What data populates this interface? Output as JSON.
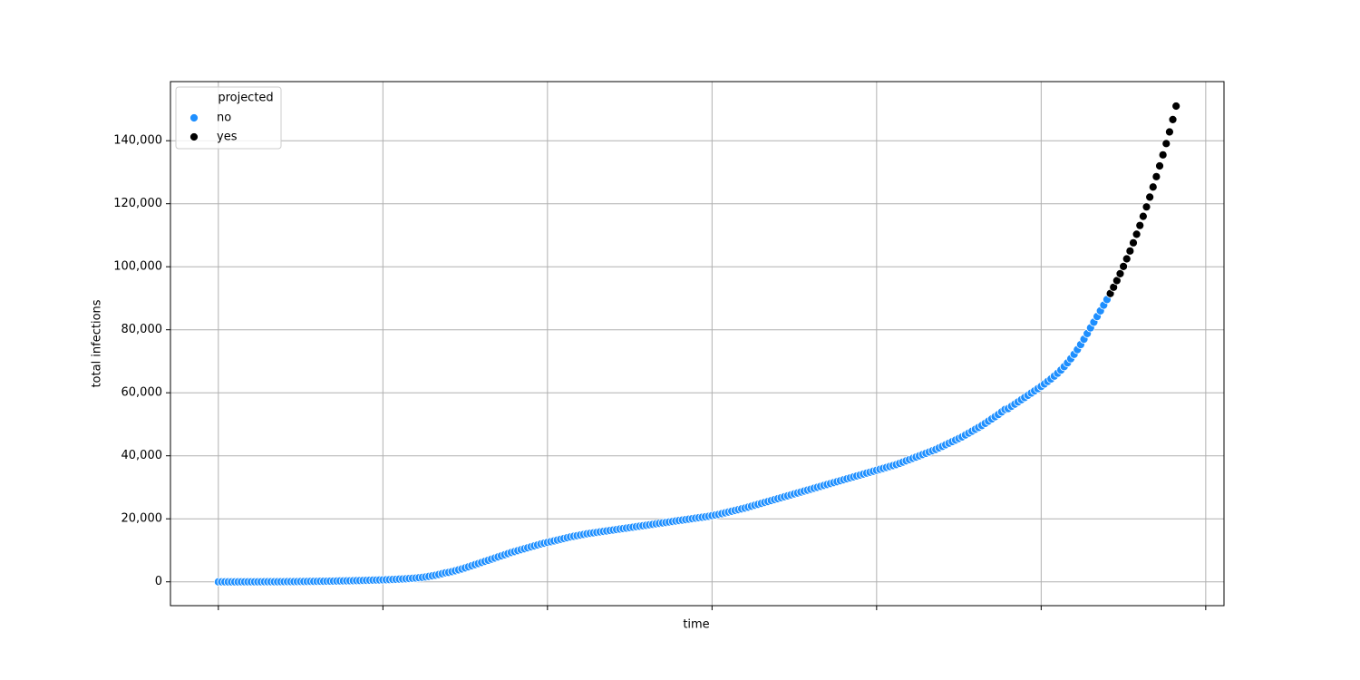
{
  "chart_data": {
    "type": "scatter",
    "xlabel": "time",
    "ylabel": "total infections",
    "legend_title": "projected",
    "xlim": [
      -14.55,
      305.55
    ],
    "ylim": [
      -7560,
      158760
    ],
    "xticks": [
      0,
      50,
      100,
      150,
      200,
      250,
      300
    ],
    "yticks": [
      0,
      {
        "value": 20000,
        "label": "20,000"
      },
      {
        "value": 40000,
        "label": "40,000"
      },
      {
        "value": 60000,
        "label": "60,000"
      },
      {
        "value": 80000,
        "label": "80,000"
      },
      {
        "value": 100000,
        "label": "100,000"
      },
      {
        "value": 120000,
        "label": "120,000"
      },
      {
        "value": 140000,
        "label": "140,000"
      }
    ],
    "grid": true,
    "legend": "upper left",
    "series": [
      {
        "name": "no",
        "color": "#1e8fff",
        "x": [
          0,
          1,
          2,
          3,
          4,
          5,
          6,
          7,
          8,
          9,
          10,
          11,
          12,
          13,
          14,
          15,
          16,
          17,
          18,
          19,
          20,
          21,
          22,
          23,
          24,
          25,
          26,
          27,
          28,
          29,
          30,
          31,
          32,
          33,
          34,
          35,
          36,
          37,
          38,
          39,
          40,
          41,
          42,
          43,
          44,
          45,
          46,
          47,
          48,
          49,
          50,
          51,
          52,
          53,
          54,
          55,
          56,
          57,
          58,
          59,
          60,
          61,
          62,
          63,
          64,
          65,
          66,
          67,
          68,
          69,
          70,
          71,
          72,
          73,
          74,
          75,
          76,
          77,
          78,
          79,
          80,
          81,
          82,
          83,
          84,
          85,
          86,
          87,
          88,
          89,
          90,
          91,
          92,
          93,
          94,
          95,
          96,
          97,
          98,
          99,
          100,
          101,
          102,
          103,
          104,
          105,
          106,
          107,
          108,
          109,
          110,
          111,
          112,
          113,
          114,
          115,
          116,
          117,
          118,
          119,
          120,
          121,
          122,
          123,
          124,
          125,
          126,
          127,
          128,
          129,
          130,
          131,
          132,
          133,
          134,
          135,
          136,
          137,
          138,
          139,
          140,
          141,
          142,
          143,
          144,
          145,
          146,
          147,
          148,
          149,
          150,
          151,
          152,
          153,
          154,
          155,
          156,
          157,
          158,
          159,
          160,
          161,
          162,
          163,
          164,
          165,
          166,
          167,
          168,
          169,
          170,
          171,
          172,
          173,
          174,
          175,
          176,
          177,
          178,
          179,
          180,
          181,
          182,
          183,
          184,
          185,
          186,
          187,
          188,
          189,
          190,
          191,
          192,
          193,
          194,
          195,
          196,
          197,
          198,
          199,
          200,
          201,
          202,
          203,
          204,
          205,
          206,
          207,
          208,
          209,
          210,
          211,
          212,
          213,
          214,
          215,
          216,
          217,
          218,
          219,
          220,
          221,
          222,
          223,
          224,
          225,
          226,
          227,
          228,
          229,
          230,
          231,
          232,
          233,
          234,
          235,
          236,
          237,
          238,
          239,
          240,
          241,
          242,
          243,
          244,
          245,
          246,
          247,
          248,
          249,
          250,
          251,
          252,
          253,
          254,
          255,
          256,
          257,
          258,
          259,
          260,
          261,
          262,
          263,
          264,
          265,
          266,
          267,
          268,
          269,
          270
        ],
        "values": [
          0,
          0,
          1,
          1,
          2,
          3,
          4,
          5,
          6,
          8,
          10,
          12,
          15,
          18,
          21,
          25,
          30,
          35,
          40,
          46,
          52,
          60,
          68,
          76,
          85,
          95,
          105,
          116,
          128,
          140,
          153,
          167,
          182,
          198,
          215,
          233,
          252,
          272,
          293,
          315,
          338,
          362,
          387,
          413,
          440,
          468,
          497,
          527,
          558,
          590,
          623,
          660,
          700,
          745,
          795,
          850,
          910,
          975,
          1045,
          1120,
          1200,
          1300,
          1420,
          1560,
          1720,
          1900,
          2100,
          2330,
          2580,
          2860,
          3000,
          3250,
          3520,
          3800,
          4100,
          4420,
          4760,
          5100,
          5450,
          5800,
          6150,
          6500,
          6850,
          7200,
          7550,
          7900,
          8250,
          8600,
          8950,
          9300,
          9600,
          9900,
          10200,
          10500,
          10800,
          11100,
          11400,
          11700,
          12000,
          12250,
          12500,
          12750,
          13000,
          13250,
          13500,
          13750,
          14000,
          14250,
          14450,
          14650,
          14850,
          15050,
          15250,
          15400,
          15550,
          15700,
          15850,
          16000,
          16150,
          16300,
          16450,
          16600,
          16750,
          16900,
          17050,
          17200,
          17350,
          17500,
          17650,
          17800,
          17950,
          18100,
          18250,
          18400,
          18550,
          18700,
          18850,
          19000,
          19150,
          19300,
          19450,
          19600,
          19750,
          19900,
          20050,
          20200,
          20350,
          20500,
          20650,
          20800,
          21000,
          21200,
          21400,
          21650,
          21900,
          22150,
          22400,
          22650,
          22900,
          23150,
          23400,
          23700,
          24000,
          24300,
          24600,
          24900,
          25200,
          25500,
          25800,
          26100,
          26400,
          26700,
          27000,
          27300,
          27600,
          27900,
          28200,
          28500,
          28800,
          29100,
          29400,
          29700,
          30000,
          30300,
          30600,
          30900,
          31200,
          31500,
          31800,
          32100,
          32400,
          32700,
          33000,
          33300,
          33600,
          33900,
          34200,
          34500,
          34800,
          35100,
          35400,
          35700,
          36000,
          36300,
          36600,
          36900,
          37200,
          37600,
          38000,
          38400,
          38800,
          39200,
          39600,
          40000,
          40400,
          40800,
          41200,
          41600,
          42000,
          42500,
          43000,
          43500,
          44000,
          44500,
          45000,
          45500,
          46000,
          46600,
          47200,
          47800,
          48400,
          49000,
          49600,
          50300,
          51000,
          51700,
          52400,
          53100,
          53900,
          54700,
          55000,
          55700,
          56400,
          57100,
          57800,
          58500,
          59200,
          59900,
          60600,
          61300,
          62000,
          62800,
          63600,
          64400,
          65300,
          66200,
          67200,
          68300,
          69500,
          70800,
          72200,
          73700,
          75300,
          77000,
          78800,
          80600,
          82400,
          84200,
          86000,
          87800,
          89600
        ]
      },
      {
        "name": "yes",
        "color": "#000000",
        "x": [
          271,
          272,
          273,
          274,
          275,
          276,
          277,
          278,
          279,
          280,
          281,
          282,
          283,
          284,
          285,
          286,
          287,
          288,
          289,
          290,
          291
        ],
        "values": [
          91500,
          93500,
          95600,
          97800,
          100100,
          102500,
          105000,
          107600,
          110300,
          113100,
          116000,
          119000,
          122100,
          125300,
          128600,
          132000,
          135500,
          139100,
          142800,
          146700,
          151000
        ]
      }
    ]
  }
}
